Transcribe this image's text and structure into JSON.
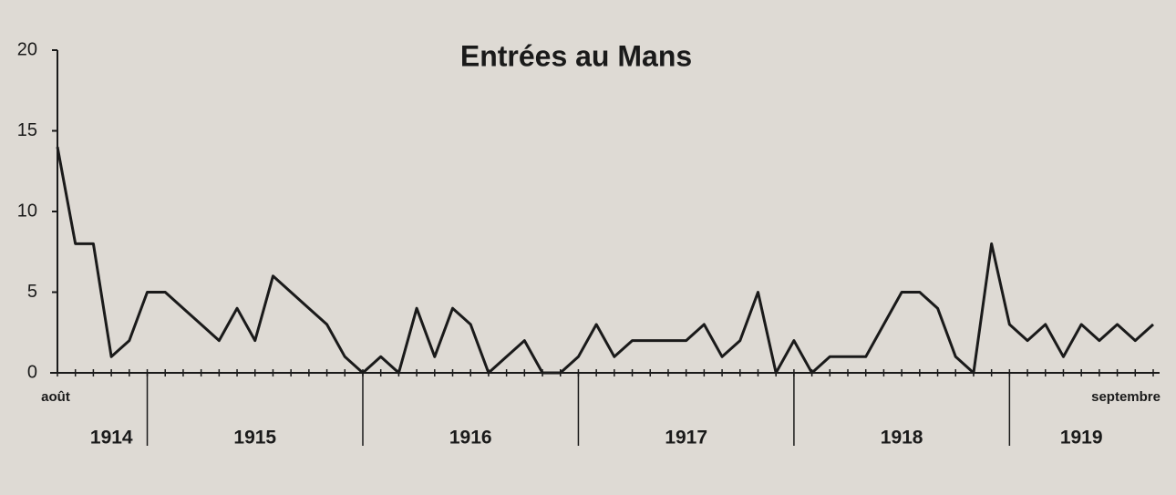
{
  "chart_data": {
    "type": "line",
    "title": "Entrées au Mans",
    "categories": [
      "août",
      null,
      null,
      null,
      null,
      null,
      null,
      null,
      null,
      null,
      null,
      null,
      null,
      null,
      null,
      null,
      null,
      null,
      null,
      null,
      null,
      null,
      null,
      null,
      null,
      null,
      null,
      null,
      null,
      null,
      null,
      null,
      null,
      null,
      null,
      null,
      null,
      null,
      null,
      null,
      null,
      null,
      null,
      null,
      null,
      null,
      null,
      null,
      null,
      null,
      null,
      null,
      null,
      null,
      null,
      null,
      null,
      null,
      null,
      null,
      null,
      "septembre"
    ],
    "years": [
      "1914",
      "1915",
      "1916",
      "1917",
      "1918",
      "1919"
    ],
    "values": [
      14,
      8,
      8,
      1,
      2,
      5,
      5,
      4,
      3,
      2,
      4,
      2,
      6,
      5,
      4,
      3,
      1,
      0,
      1,
      0,
      4,
      1,
      4,
      3,
      0,
      1,
      2,
      0,
      0,
      1,
      3,
      1,
      2,
      2,
      2,
      2,
      3,
      1,
      2,
      5,
      0,
      2,
      0,
      1,
      1,
      1,
      3,
      5,
      5,
      4,
      1,
      0,
      8,
      3,
      2,
      3,
      1,
      3,
      2,
      3,
      2,
      3
    ],
    "color": "#1a1a1a",
    "ylim": [
      0,
      20
    ],
    "yticks": [
      0,
      5,
      10,
      15,
      20
    ]
  }
}
